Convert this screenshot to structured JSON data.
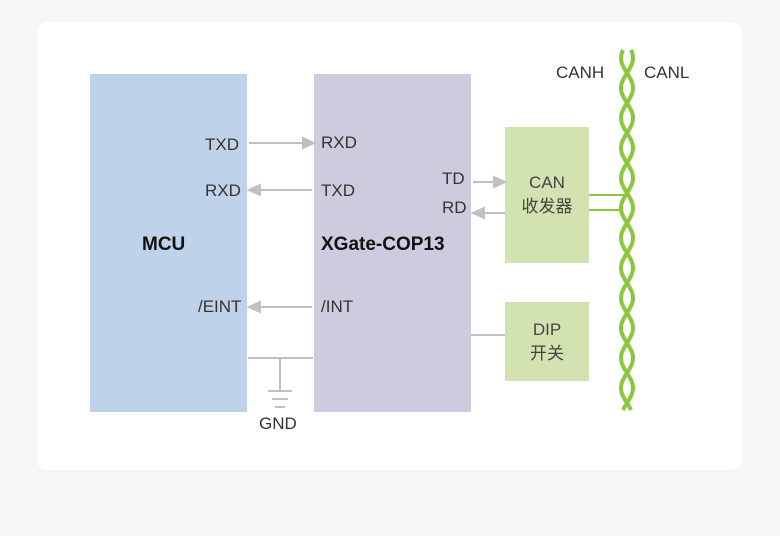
{
  "blocks": {
    "mcu": "MCU",
    "xgate": "XGate-COP13",
    "can_line1": "CAN",
    "can_line2": "收发器",
    "dip_line1": "DIP",
    "dip_line2": "开关"
  },
  "pins": {
    "mcu_txd": "TXD",
    "mcu_rxd": "RXD",
    "mcu_eint": "/EINT",
    "xg_rxd": "RXD",
    "xg_txd": "TXD",
    "xg_int": "/INT",
    "xg_td": "TD",
    "xg_rd": "RD"
  },
  "bus": {
    "canh": "CANH",
    "canl": "CANL"
  },
  "gnd": "GND",
  "colors": {
    "mcu": "#bed3ea",
    "xgate": "#cfcadd",
    "green_block": "#d2e2b0",
    "wire": "#8cc63f",
    "arrow": "#c0c0c0"
  }
}
